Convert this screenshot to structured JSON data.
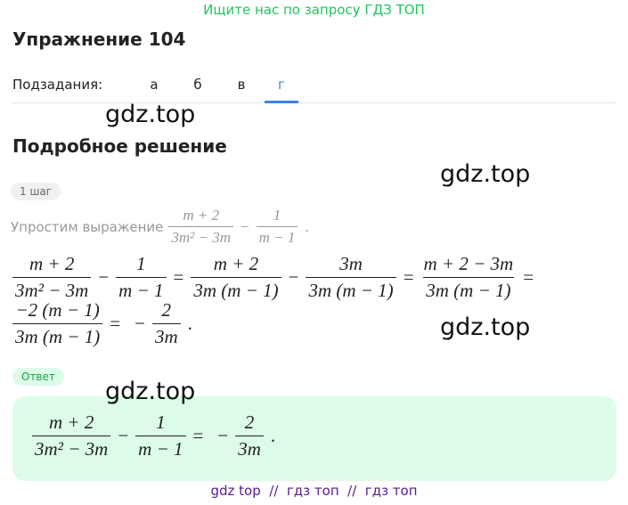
{
  "banner": "Ищите нас по запросу ГДЗ ТОП",
  "title": "Упражнение 104",
  "subtasks": {
    "label": "Подзадания:",
    "tabs": [
      "а",
      "б",
      "в",
      "г"
    ],
    "active": 3
  },
  "watermarks": [
    "gdz.top",
    "gdz.top",
    "gdz.top",
    "gdz.top"
  ],
  "section_title": "Подробное решение",
  "step": {
    "badge": "1 шаг",
    "intro": "Упростим выражение",
    "intro_expr": [
      {
        "num": "m + 2",
        "den": "3m² − 3m"
      },
      "−",
      {
        "num": "1",
        "den": "m − 1"
      },
      "."
    ],
    "lines": [
      [
        {
          "num": "m + 2",
          "den": "3m² − 3m"
        },
        "−",
        {
          "num": "1",
          "den": "m − 1"
        },
        "=",
        {
          "num": "m + 2",
          "den": "3m (m − 1)"
        },
        "−",
        {
          "num": "3m",
          "den": "3m (m − 1)"
        },
        "=",
        {
          "num": "m + 2 − 3m",
          "den": "3m (m − 1)"
        },
        "="
      ],
      [
        {
          "num": "−2 (m − 1)",
          "den": "3m (m − 1)"
        },
        "=",
        "−",
        {
          "num": "2",
          "den": "3m"
        },
        "."
      ]
    ]
  },
  "answer": {
    "badge": "Ответ",
    "expr": [
      {
        "num": "m + 2",
        "den": "3m² − 3m"
      },
      "−",
      {
        "num": "1",
        "den": "m − 1"
      },
      "=",
      "−",
      {
        "num": "2",
        "den": "3m"
      },
      "."
    ]
  },
  "footer": "gdz top  //  гдз топ  //  гдз топ"
}
